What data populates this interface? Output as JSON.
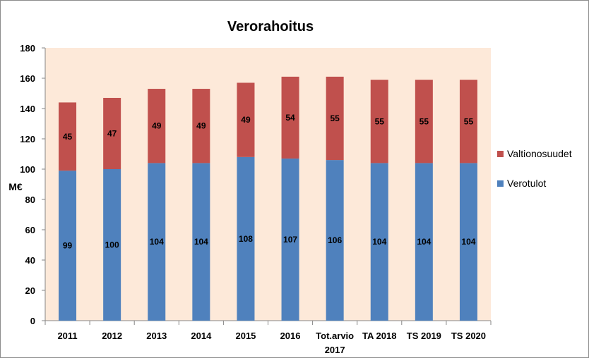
{
  "chart_data": {
    "type": "bar",
    "stacked": true,
    "title": "Verorahoitus",
    "ylabel": "M€",
    "xlabel": "",
    "ylim": [
      0,
      180
    ],
    "yticks": [
      0,
      20,
      40,
      60,
      80,
      100,
      120,
      140,
      160,
      180
    ],
    "grid": false,
    "legend_position": "right",
    "categories": [
      "2011",
      "2012",
      "2013",
      "2014",
      "2015",
      "2016",
      "Tot.arvio 2017",
      "TA 2018",
      "TS 2019",
      "TS 2020"
    ],
    "category_lines": [
      [
        "2011"
      ],
      [
        "2012"
      ],
      [
        "2013"
      ],
      [
        "2014"
      ],
      [
        "2015"
      ],
      [
        "2016"
      ],
      [
        "Tot.arvio",
        "2017"
      ],
      [
        "TA 2018"
      ],
      [
        "TS 2019"
      ],
      [
        "TS 2020"
      ]
    ],
    "series": [
      {
        "name": "Verotulot",
        "color": "#4f81bd",
        "values": [
          99,
          100,
          104,
          104,
          108,
          107,
          106,
          104,
          104,
          104
        ],
        "labels": [
          "99",
          "100",
          "104",
          "104",
          "108",
          "107",
          "106",
          "104",
          "104",
          "104"
        ]
      },
      {
        "name": "Valtionosuudet",
        "color": "#c0504d",
        "values": [
          45,
          47,
          49,
          49,
          49,
          54,
          55,
          55,
          55,
          55
        ],
        "labels": [
          "45",
          "47",
          "49",
          "49",
          "49",
          "54",
          "55",
          "55",
          "55",
          "55"
        ]
      }
    ],
    "legend_order": [
      "Valtionosuudet",
      "Verotulot"
    ],
    "plot_background": "#fde9d9"
  }
}
